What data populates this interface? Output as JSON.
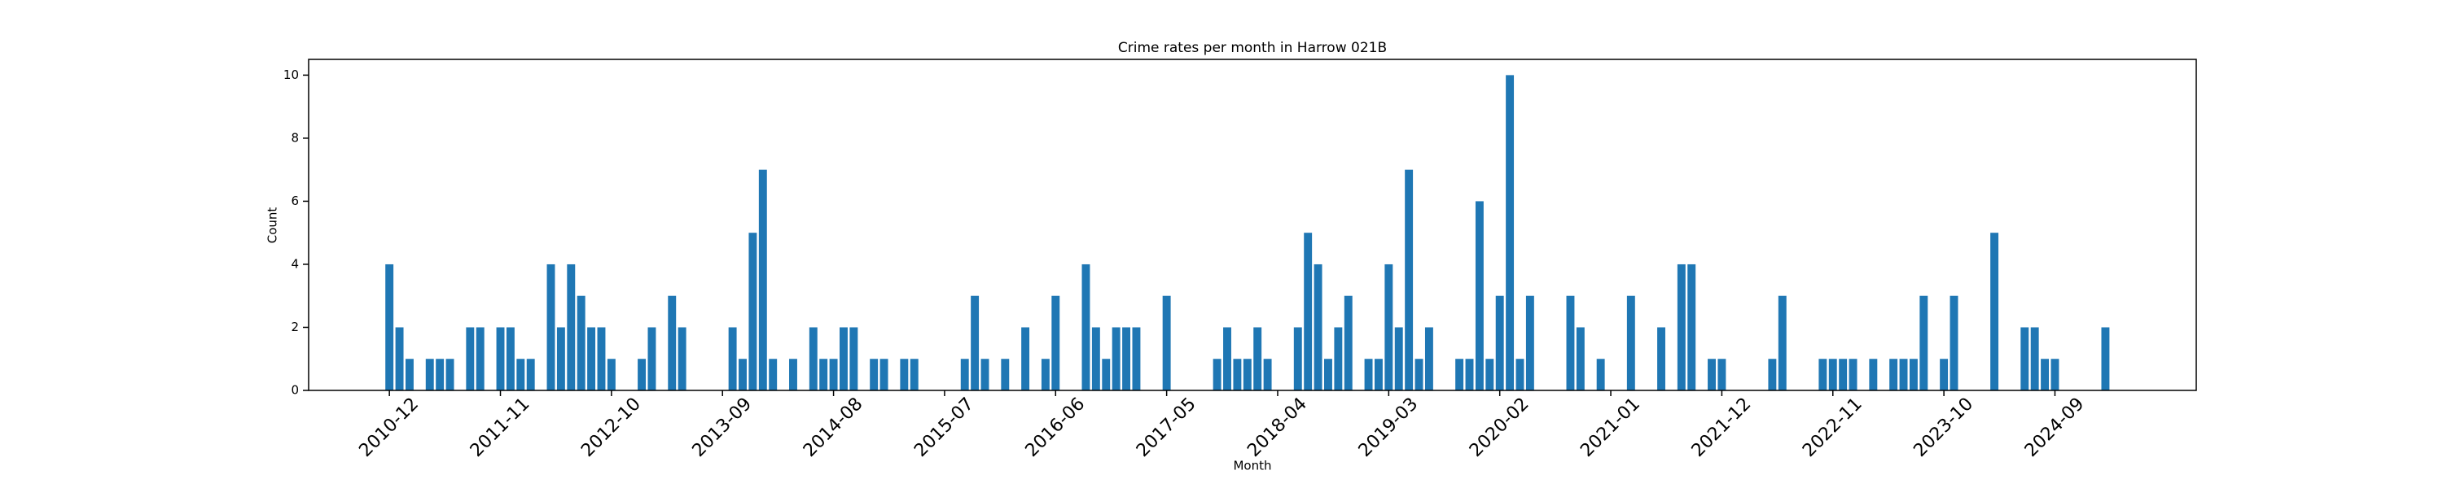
{
  "chart_data": {
    "type": "bar",
    "title": "Crime rates per month in Harrow 021B",
    "x_label": "Month",
    "y_label": "Count",
    "color": "#1f77b4",
    "x": [
      "2010-12",
      "2011-01",
      "2011-02",
      "2011-04",
      "2011-05",
      "2011-06",
      "2011-08",
      "2011-09",
      "2011-11",
      "2011-12",
      "2012-01",
      "2012-02",
      "2012-04",
      "2012-05",
      "2012-06",
      "2012-07",
      "2012-08",
      "2012-09",
      "2012-10",
      "2013-01",
      "2013-02",
      "2013-04",
      "2013-05",
      "2013-10",
      "2013-11",
      "2013-12",
      "2014-01",
      "2014-02",
      "2014-04",
      "2014-06",
      "2014-07",
      "2014-08",
      "2014-09",
      "2014-10",
      "2014-12",
      "2015-01",
      "2015-03",
      "2015-04",
      "2015-09",
      "2015-10",
      "2015-11",
      "2016-01",
      "2016-03",
      "2016-05",
      "2016-06",
      "2016-09",
      "2016-10",
      "2016-11",
      "2016-12",
      "2017-01",
      "2017-02",
      "2017-05",
      "2017-10",
      "2017-11",
      "2017-12",
      "2018-01",
      "2018-02",
      "2018-03",
      "2018-06",
      "2018-07",
      "2018-08",
      "2018-09",
      "2018-10",
      "2018-11",
      "2019-01",
      "2019-02",
      "2019-03",
      "2019-04",
      "2019-05",
      "2019-06",
      "2019-07",
      "2019-10",
      "2019-11",
      "2019-12",
      "2020-01",
      "2020-02",
      "2020-03",
      "2020-04",
      "2020-05",
      "2020-09",
      "2020-10",
      "2020-12",
      "2021-03",
      "2021-06",
      "2021-08",
      "2021-09",
      "2021-11",
      "2021-12",
      "2022-05",
      "2022-06",
      "2022-10",
      "2022-11",
      "2022-12",
      "2023-01",
      "2023-03",
      "2023-05",
      "2023-06",
      "2023-07",
      "2023-08",
      "2023-10",
      "2023-11",
      "2024-03",
      "2024-06",
      "2024-07",
      "2024-08",
      "2024-09",
      "2025-02"
    ],
    "values": [
      4,
      2,
      1,
      1,
      1,
      1,
      2,
      2,
      2,
      2,
      1,
      1,
      4,
      2,
      4,
      3,
      2,
      2,
      1,
      1,
      2,
      3,
      2,
      2,
      1,
      5,
      7,
      1,
      1,
      2,
      1,
      1,
      2,
      2,
      1,
      1,
      1,
      1,
      1,
      3,
      1,
      1,
      2,
      1,
      3,
      4,
      2,
      1,
      2,
      2,
      2,
      3,
      1,
      2,
      1,
      1,
      2,
      1,
      2,
      5,
      4,
      1,
      2,
      3,
      1,
      1,
      4,
      2,
      7,
      1,
      2,
      1,
      1,
      6,
      1,
      3,
      10,
      1,
      3,
      3,
      2,
      1,
      3,
      2,
      4,
      4,
      1,
      1,
      1,
      3,
      1,
      1,
      1,
      1,
      1,
      1,
      1,
      1,
      3,
      1,
      3,
      5,
      2,
      2,
      1,
      1,
      2
    ],
    "xlim": [
      "2010-04",
      "2025-11"
    ],
    "xticks": [
      "2010-12",
      "2011-11",
      "2012-10",
      "2013-09",
      "2014-08",
      "2015-07",
      "2016-06",
      "2017-05",
      "2018-04",
      "2019-03",
      "2020-02",
      "2021-01",
      "2021-12",
      "2022-11",
      "2023-10",
      "2024-09"
    ],
    "ylim": [
      0,
      10.5
    ],
    "yticks": [
      0,
      2,
      4,
      6,
      8,
      10
    ]
  }
}
